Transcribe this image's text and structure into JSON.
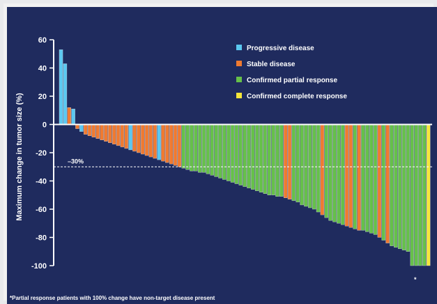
{
  "chart_data": {
    "type": "bar",
    "title": "",
    "xlabel": "",
    "ylabel": "Maximum change in tumor size (%)",
    "ylim": [
      -100,
      60
    ],
    "yticks": [
      60,
      40,
      20,
      0,
      -20,
      -40,
      -60,
      -80,
      -100
    ],
    "grid": false,
    "legend_position": "top-right",
    "reference_line": {
      "value": -30,
      "label": "–30%",
      "style": "dashed"
    },
    "annotation_marker": "*",
    "footnote": "*Partial response patients with 100% change have non-target disease present",
    "series": [
      {
        "name": "Progressive disease",
        "color": "#5bc8f0"
      },
      {
        "name": "Stable disease",
        "color": "#f07a30"
      },
      {
        "name": "Confirmed partial response",
        "color": "#66c04a"
      },
      {
        "name": "Confirmed complete response",
        "color": "#f5e63a"
      }
    ],
    "bars": [
      {
        "v": 53,
        "s": 0
      },
      {
        "v": 43,
        "s": 0
      },
      {
        "v": 12,
        "s": 1
      },
      {
        "v": 11,
        "s": 0
      },
      {
        "v": -3,
        "s": 1
      },
      {
        "v": -5,
        "s": 0
      },
      {
        "v": -7,
        "s": 1
      },
      {
        "v": -8,
        "s": 1
      },
      {
        "v": -9,
        "s": 1
      },
      {
        "v": -10,
        "s": 1
      },
      {
        "v": -11,
        "s": 1
      },
      {
        "v": -12,
        "s": 1
      },
      {
        "v": -13,
        "s": 1
      },
      {
        "v": -14,
        "s": 1
      },
      {
        "v": -15,
        "s": 1
      },
      {
        "v": -16,
        "s": 1
      },
      {
        "v": -17,
        "s": 1
      },
      {
        "v": -18,
        "s": 0
      },
      {
        "v": -19,
        "s": 1
      },
      {
        "v": -20,
        "s": 1
      },
      {
        "v": -21,
        "s": 1
      },
      {
        "v": -22,
        "s": 1
      },
      {
        "v": -23,
        "s": 1
      },
      {
        "v": -24,
        "s": 1
      },
      {
        "v": -25,
        "s": 0
      },
      {
        "v": -26,
        "s": 1
      },
      {
        "v": -27,
        "s": 1
      },
      {
        "v": -28,
        "s": 1
      },
      {
        "v": -29,
        "s": 1
      },
      {
        "v": -30,
        "s": 1
      },
      {
        "v": -31,
        "s": 2
      },
      {
        "v": -32,
        "s": 2
      },
      {
        "v": -33,
        "s": 2
      },
      {
        "v": -33,
        "s": 2
      },
      {
        "v": -34,
        "s": 2
      },
      {
        "v": -34,
        "s": 2
      },
      {
        "v": -35,
        "s": 2
      },
      {
        "v": -36,
        "s": 2
      },
      {
        "v": -37,
        "s": 2
      },
      {
        "v": -38,
        "s": 2
      },
      {
        "v": -39,
        "s": 2
      },
      {
        "v": -40,
        "s": 2
      },
      {
        "v": -41,
        "s": 2
      },
      {
        "v": -42,
        "s": 2
      },
      {
        "v": -43,
        "s": 2
      },
      {
        "v": -44,
        "s": 2
      },
      {
        "v": -45,
        "s": 2
      },
      {
        "v": -46,
        "s": 2
      },
      {
        "v": -47,
        "s": 2
      },
      {
        "v": -48,
        "s": 2
      },
      {
        "v": -49,
        "s": 2
      },
      {
        "v": -50,
        "s": 2
      },
      {
        "v": -50,
        "s": 2
      },
      {
        "v": -51,
        "s": 2
      },
      {
        "v": -51,
        "s": 2
      },
      {
        "v": -52,
        "s": 1
      },
      {
        "v": -53,
        "s": 1
      },
      {
        "v": -54,
        "s": 2
      },
      {
        "v": -55,
        "s": 2
      },
      {
        "v": -57,
        "s": 2
      },
      {
        "v": -58,
        "s": 2
      },
      {
        "v": -59,
        "s": 2
      },
      {
        "v": -60,
        "s": 2
      },
      {
        "v": -62,
        "s": 2
      },
      {
        "v": -64,
        "s": 1
      },
      {
        "v": -66,
        "s": 2
      },
      {
        "v": -68,
        "s": 2
      },
      {
        "v": -69,
        "s": 2
      },
      {
        "v": -70,
        "s": 2
      },
      {
        "v": -71,
        "s": 2
      },
      {
        "v": -72,
        "s": 1
      },
      {
        "v": -73,
        "s": 1
      },
      {
        "v": -74,
        "s": 2
      },
      {
        "v": -75,
        "s": 1
      },
      {
        "v": -75,
        "s": 2
      },
      {
        "v": -76,
        "s": 2
      },
      {
        "v": -77,
        "s": 2
      },
      {
        "v": -78,
        "s": 2
      },
      {
        "v": -80,
        "s": 1
      },
      {
        "v": -82,
        "s": 2
      },
      {
        "v": -84,
        "s": 1
      },
      {
        "v": -86,
        "s": 2
      },
      {
        "v": -87,
        "s": 2
      },
      {
        "v": -88,
        "s": 2
      },
      {
        "v": -89,
        "s": 2
      },
      {
        "v": -90,
        "s": 2
      },
      {
        "v": -100,
        "s": 2
      },
      {
        "v": -100,
        "s": 2
      },
      {
        "v": -100,
        "s": 2
      },
      {
        "v": -100,
        "s": 2
      },
      {
        "v": -100,
        "s": 3
      }
    ],
    "bar_edge_color": "#c8ccd8"
  }
}
